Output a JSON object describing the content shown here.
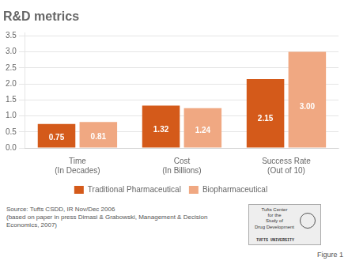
{
  "chart_data": {
    "type": "bar",
    "title": "R&D metrics",
    "categories": [
      "Time\n(In Decades)",
      "Cost\n(In Billions)",
      "Success Rate\n(Out of 10)"
    ],
    "series": [
      {
        "name": "Traditional Pharmaceutical",
        "color": "#D45A1A",
        "values": [
          0.75,
          1.32,
          2.15
        ],
        "value_labels": [
          "0.75",
          "1.32",
          "2.15"
        ]
      },
      {
        "name": "Biopharmaceutical",
        "color": "#F0A882",
        "values": [
          0.81,
          1.24,
          3.0
        ],
        "value_labels": [
          "0.81",
          "1.24",
          "3.00"
        ]
      }
    ],
    "ylim": [
      0,
      3.6
    ],
    "yticks": [
      {
        "value": 0,
        "label": "0.0"
      },
      0.5,
      {
        "value": 1,
        "label": "1.0"
      },
      1.5,
      {
        "value": 2,
        "label": "2.0"
      },
      2.5,
      {
        "value": 3,
        "label": "3.0"
      },
      3.5
    ],
    "grid": true,
    "legend": "bottom",
    "data_labels": true,
    "annotations": [
      "Source: Tufts CSDD, IR Nov/Dec 2006\n(based on paper in press Dimasi & Grabowski, Management & Decision Economics, 2007)",
      "Figure 1",
      "Tufts Center\nfor the\nStudy of\nDrug Development",
      "TUFTS UNIVERSITY"
    ]
  }
}
